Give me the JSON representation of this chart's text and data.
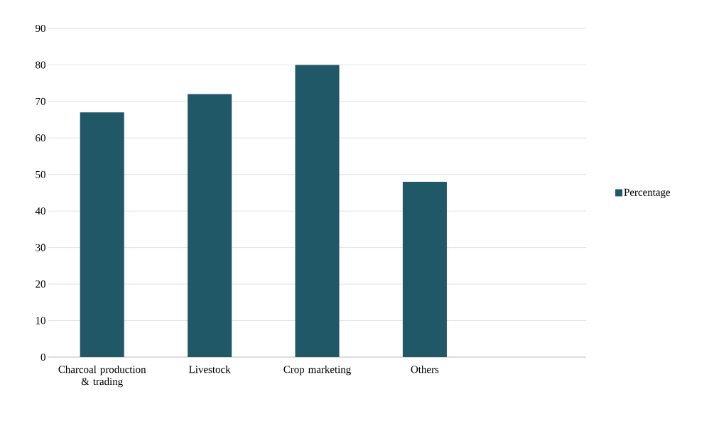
{
  "chart_data": {
    "type": "bar",
    "categories": [
      "Charcoal production & trading",
      "Livestock",
      "Crop marketing",
      "Others",
      null
    ],
    "series": [
      {
        "name": "Percentage",
        "color": "#215868",
        "values": [
          67,
          72,
          80,
          48,
          null
        ]
      }
    ],
    "ylim": [
      0,
      90
    ],
    "yticks": [
      0,
      10,
      20,
      30,
      40,
      50,
      60,
      70,
      80,
      90
    ],
    "grid": "y",
    "legend": "right"
  }
}
